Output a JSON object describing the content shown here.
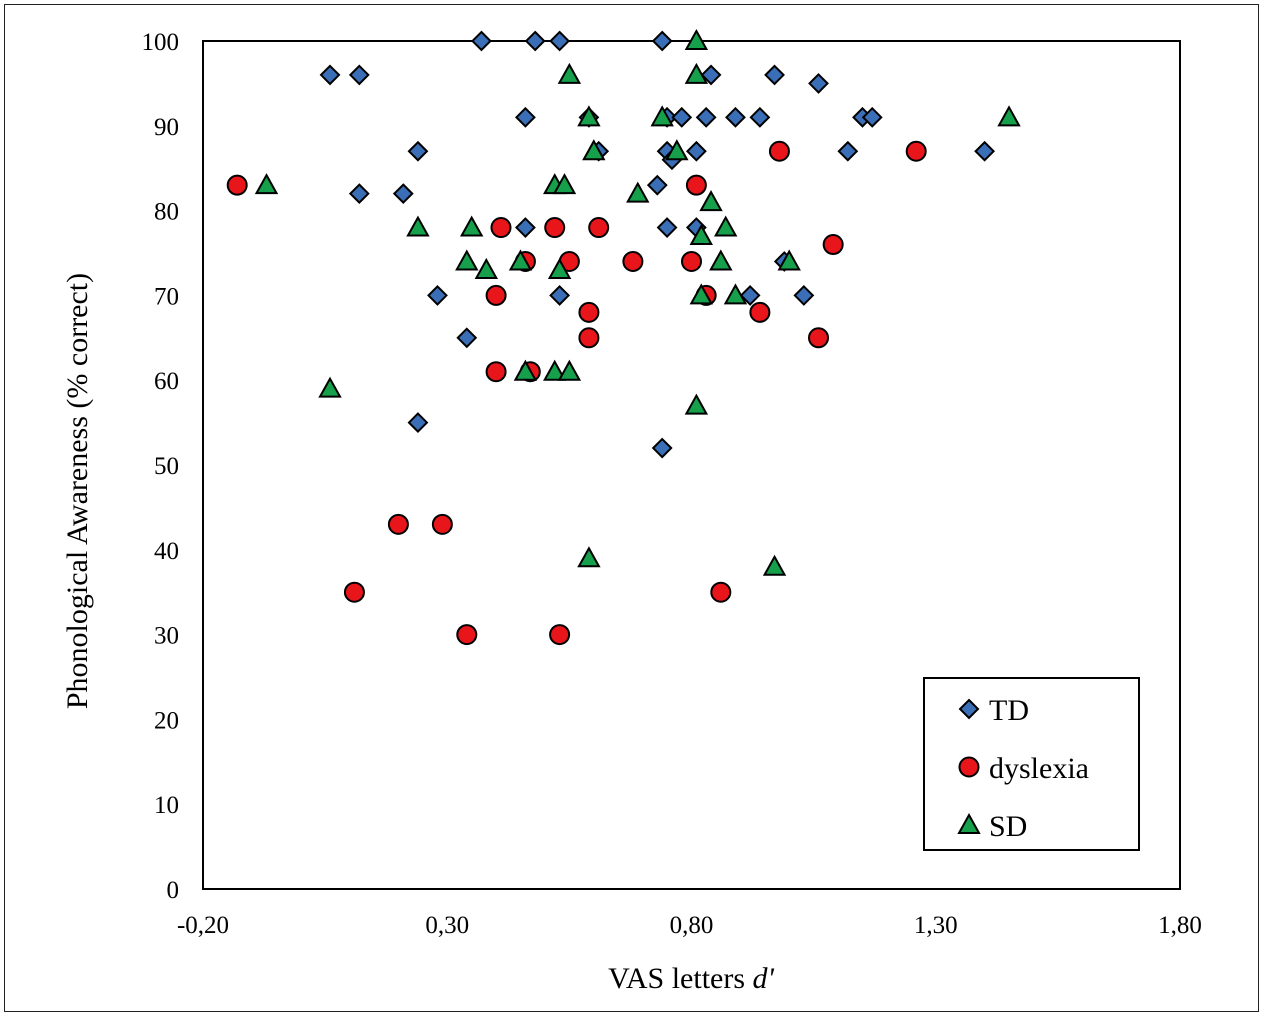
{
  "chart_data": {
    "type": "scatter",
    "xlabel": "VAS letters",
    "xlabel_italic": "d'",
    "ylabel": "Phonological Awareness (% correct)",
    "xlim": [
      -0.2,
      1.8
    ],
    "ylim": [
      0,
      100
    ],
    "xticks": [
      "-0,20",
      "0,30",
      "0,80",
      "1,30",
      "1,80"
    ],
    "yticks": [
      "0",
      "10",
      "20",
      "30",
      "40",
      "50",
      "60",
      "70",
      "80",
      "90",
      "100"
    ],
    "grid": false,
    "legend_position": "bottom-right",
    "series": [
      {
        "name": "TD",
        "marker": "diamond",
        "color": "#3a6fb7",
        "points": [
          [
            0.06,
            96
          ],
          [
            0.12,
            96
          ],
          [
            0.37,
            100
          ],
          [
            0.48,
            100
          ],
          [
            0.53,
            100
          ],
          [
            0.74,
            100
          ],
          [
            0.84,
            96
          ],
          [
            0.97,
            96
          ],
          [
            1.06,
            95
          ],
          [
            0.46,
            91
          ],
          [
            0.59,
            91
          ],
          [
            0.75,
            91
          ],
          [
            0.78,
            91
          ],
          [
            0.83,
            91
          ],
          [
            0.89,
            91
          ],
          [
            0.94,
            91
          ],
          [
            1.15,
            91
          ],
          [
            1.17,
            91
          ],
          [
            0.24,
            87
          ],
          [
            0.61,
            87
          ],
          [
            0.75,
            87
          ],
          [
            0.81,
            87
          ],
          [
            1.12,
            87
          ],
          [
            1.4,
            87
          ],
          [
            0.76,
            86
          ],
          [
            0.73,
            83
          ],
          [
            0.12,
            82
          ],
          [
            0.21,
            82
          ],
          [
            0.46,
            78
          ],
          [
            0.75,
            78
          ],
          [
            0.81,
            78
          ],
          [
            0.99,
            74
          ],
          [
            0.28,
            70
          ],
          [
            0.53,
            70
          ],
          [
            0.92,
            70
          ],
          [
            1.03,
            70
          ],
          [
            0.34,
            65
          ],
          [
            0.24,
            55
          ],
          [
            0.74,
            52
          ]
        ]
      },
      {
        "name": "dyslexia",
        "marker": "circle",
        "color": "#e8161b",
        "points": [
          [
            -0.13,
            83
          ],
          [
            0.81,
            83
          ],
          [
            0.98,
            87
          ],
          [
            1.26,
            87
          ],
          [
            0.41,
            78
          ],
          [
            0.52,
            78
          ],
          [
            0.61,
            78
          ],
          [
            1.09,
            76
          ],
          [
            0.46,
            74
          ],
          [
            0.55,
            74
          ],
          [
            0.68,
            74
          ],
          [
            0.8,
            74
          ],
          [
            0.4,
            70
          ],
          [
            0.83,
            70
          ],
          [
            0.59,
            68
          ],
          [
            0.94,
            68
          ],
          [
            0.59,
            65
          ],
          [
            1.06,
            65
          ],
          [
            0.4,
            61
          ],
          [
            0.47,
            61
          ],
          [
            0.2,
            43
          ],
          [
            0.29,
            43
          ],
          [
            0.11,
            35
          ],
          [
            0.86,
            35
          ],
          [
            0.34,
            30
          ],
          [
            0.53,
            30
          ]
        ]
      },
      {
        "name": "SD",
        "marker": "triangle",
        "color": "#16a04b",
        "points": [
          [
            0.81,
            100
          ],
          [
            0.55,
            96
          ],
          [
            0.81,
            96
          ],
          [
            0.59,
            91
          ],
          [
            0.74,
            91
          ],
          [
            1.45,
            91
          ],
          [
            0.6,
            87
          ],
          [
            0.77,
            87
          ],
          [
            -0.07,
            83
          ],
          [
            0.52,
            83
          ],
          [
            0.54,
            83
          ],
          [
            0.69,
            82
          ],
          [
            0.84,
            81
          ],
          [
            0.24,
            78
          ],
          [
            0.35,
            78
          ],
          [
            0.87,
            78
          ],
          [
            0.82,
            77
          ],
          [
            0.34,
            74
          ],
          [
            0.45,
            74
          ],
          [
            0.86,
            74
          ],
          [
            1.0,
            74
          ],
          [
            0.38,
            73
          ],
          [
            0.53,
            73
          ],
          [
            0.82,
            70
          ],
          [
            0.89,
            70
          ],
          [
            0.46,
            61
          ],
          [
            0.52,
            61
          ],
          [
            0.55,
            61
          ],
          [
            0.06,
            59
          ],
          [
            0.81,
            57
          ],
          [
            0.59,
            39
          ],
          [
            0.97,
            38
          ]
        ]
      }
    ]
  }
}
